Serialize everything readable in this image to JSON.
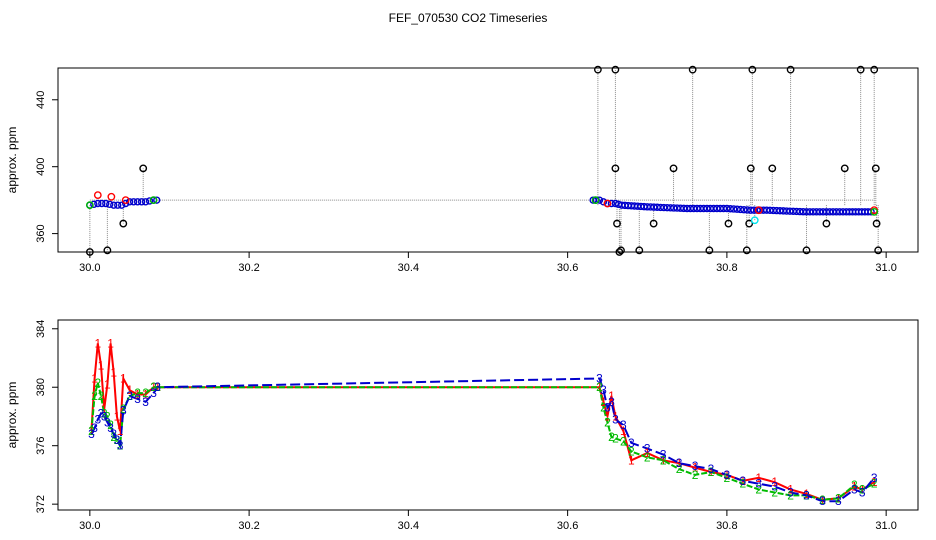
{
  "figure": {
    "title": "FEF_070530  CO2 Timeseries"
  },
  "colors": {
    "red": "#ff0000",
    "green": "#00bb00",
    "blue": "#0000cc",
    "black": "#000000",
    "cyan": "#00e5ee",
    "grey": "#8c8c8c"
  },
  "chart_data": [
    {
      "type": "scatter",
      "panel": "top",
      "title": "",
      "xlabel": "",
      "ylabel": "approx. ppm",
      "xlim": [
        29.96,
        31.04
      ],
      "ylim": [
        349,
        459
      ],
      "xticks": [
        "30.0",
        "30.2",
        "30.4",
        "30.6",
        "30.8",
        "31.0"
      ],
      "yticks": [
        "360",
        "400",
        "440"
      ],
      "grid": false,
      "legend": "none",
      "series": [
        {
          "color": "black",
          "points": [
            [
              30.0,
              348
            ],
            [
              30.022,
              350
            ],
            [
              30.042,
              366
            ],
            [
              30.067,
              399
            ],
            [
              30.638,
              458
            ],
            [
              30.66,
              458
            ],
            [
              30.66,
              399
            ],
            [
              30.662,
              366
            ],
            [
              30.667,
              350
            ],
            [
              30.665,
              348
            ],
            [
              30.69,
              350
            ],
            [
              30.708,
              366
            ],
            [
              30.733,
              399
            ],
            [
              30.757,
              458
            ],
            [
              30.778,
              350
            ],
            [
              30.802,
              366
            ],
            [
              30.825,
              350
            ],
            [
              30.828,
              366
            ],
            [
              30.83,
              399
            ],
            [
              30.832,
              458
            ],
            [
              30.857,
              399
            ],
            [
              30.88,
              458
            ],
            [
              30.9,
              350
            ],
            [
              30.925,
              366
            ],
            [
              30.948,
              399
            ],
            [
              30.968,
              458
            ],
            [
              30.985,
              458
            ],
            [
              30.987,
              399
            ],
            [
              30.988,
              366
            ],
            [
              30.99,
              350
            ]
          ]
        },
        {
          "color": "cyan",
          "points": [
            [
              30.835,
              368
            ]
          ]
        },
        {
          "color": "red",
          "points": [
            [
              30.01,
              383
            ],
            [
              30.027,
              382
            ],
            [
              30.045,
              380
            ],
            [
              30.65,
              378
            ],
            [
              30.84,
              374
            ],
            [
              30.985,
              374
            ]
          ]
        },
        {
          "color": "green",
          "points": [
            [
              30.0,
              377
            ],
            [
              30.08,
              380
            ],
            [
              30.635,
              380
            ],
            [
              30.985,
              373
            ]
          ]
        },
        {
          "color": "blue",
          "segments": [
            [
              [
                30.0,
                377
              ],
              [
                30.01,
                378
              ],
              [
                30.02,
                378
              ],
              [
                30.03,
                377
              ],
              [
                30.04,
                377
              ],
              [
                30.05,
                379
              ],
              [
                30.06,
                379
              ],
              [
                30.07,
                379
              ],
              [
                30.08,
                380
              ],
              [
                30.088,
                380
              ]
            ],
            [
              [
                30.632,
                380
              ],
              [
                30.64,
                380
              ],
              [
                30.65,
                378
              ],
              [
                30.66,
                378
              ],
              [
                30.668,
                377
              ],
              [
                30.7,
                376
              ],
              [
                30.75,
                375
              ],
              [
                30.8,
                375
              ],
              [
                30.83,
                374
              ],
              [
                30.85,
                374
              ],
              [
                30.9,
                373
              ],
              [
                30.95,
                373
              ],
              [
                30.985,
                373
              ]
            ]
          ]
        }
      ]
    },
    {
      "type": "line",
      "panel": "bottom",
      "title": "",
      "xlabel": "",
      "ylabel": "approx. ppm",
      "xlim": [
        29.96,
        31.04
      ],
      "ylim": [
        371.6,
        384.6
      ],
      "xticks": [
        "30.0",
        "30.2",
        "30.4",
        "30.6",
        "30.8",
        "31.0"
      ],
      "yticks": [
        "372",
        "376",
        "380",
        "384"
      ],
      "grid": false,
      "legend": "none",
      "series": [
        {
          "marker": "1",
          "color": "red",
          "x": [
            30.002,
            30.006,
            30.01,
            30.014,
            30.018,
            30.022,
            30.026,
            30.03,
            30.034,
            30.038,
            30.042,
            30.05,
            30.06,
            30.07,
            30.08,
            30.085,
            30.64,
            30.645,
            30.65,
            30.655,
            30.66,
            30.67,
            30.68,
            30.7,
            30.72,
            30.74,
            30.76,
            30.78,
            30.8,
            30.82,
            30.84,
            30.86,
            30.88,
            30.9,
            30.92,
            30.94,
            30.96,
            30.97,
            30.985
          ],
          "values": [
            377.0,
            380.6,
            383.0,
            381.5,
            378.5,
            380.2,
            383.0,
            381.0,
            378.0,
            377.0,
            380.6,
            379.8,
            379.5,
            379.5,
            380.0,
            380.0,
            380.0,
            379.0,
            378.0,
            379.4,
            378.0,
            377.0,
            375.0,
            375.5,
            375.0,
            374.8,
            374.5,
            374.2,
            374.0,
            373.6,
            373.8,
            373.5,
            373.0,
            372.7,
            372.3,
            372.4,
            373.2,
            373.0,
            373.5
          ]
        },
        {
          "marker": "2",
          "color": "green",
          "x": [
            30.002,
            30.006,
            30.01,
            30.014,
            30.018,
            30.022,
            30.026,
            30.03,
            30.034,
            30.038,
            30.042,
            30.05,
            30.06,
            30.07,
            30.08,
            30.085,
            30.64,
            30.645,
            30.65,
            30.655,
            30.66,
            30.67,
            30.68,
            30.7,
            30.72,
            30.74,
            30.76,
            30.78,
            30.8,
            30.82,
            30.84,
            30.86,
            30.88,
            30.9,
            30.92,
            30.94,
            30.96,
            30.97,
            30.985
          ],
          "values": [
            377.0,
            379.4,
            380.3,
            379.4,
            378.2,
            378.0,
            377.4,
            376.6,
            376.4,
            376.0,
            378.5,
            379.4,
            379.6,
            379.6,
            380.0,
            380.0,
            380.0,
            378.6,
            377.6,
            376.6,
            376.5,
            376.3,
            375.6,
            375.2,
            375.0,
            374.4,
            374.0,
            374.2,
            373.8,
            373.4,
            373.0,
            372.8,
            372.6,
            372.6,
            372.3,
            372.4,
            373.3,
            373.0,
            373.4
          ]
        },
        {
          "marker": "3",
          "color": "blue",
          "x": [
            30.002,
            30.006,
            30.01,
            30.014,
            30.018,
            30.022,
            30.026,
            30.03,
            30.034,
            30.038,
            30.042,
            30.05,
            30.06,
            30.07,
            30.08,
            30.085,
            30.64,
            30.645,
            30.65,
            30.655,
            30.66,
            30.67,
            30.68,
            30.7,
            30.72,
            30.74,
            30.76,
            30.78,
            30.8,
            30.82,
            30.84,
            30.86,
            30.88,
            30.9,
            30.92,
            30.94,
            30.96,
            30.97,
            30.985
          ],
          "values": [
            376.8,
            377.2,
            377.8,
            378.2,
            378.0,
            377.6,
            377.2,
            376.8,
            376.4,
            376.0,
            378.4,
            379.4,
            379.2,
            379.0,
            379.6,
            380.0,
            380.6,
            379.8,
            378.6,
            379.0,
            377.8,
            377.4,
            376.2,
            375.8,
            375.4,
            374.8,
            374.6,
            374.4,
            374.0,
            373.6,
            373.4,
            373.2,
            372.8,
            372.6,
            372.2,
            372.2,
            373.0,
            372.8,
            373.8
          ]
        }
      ]
    }
  ]
}
